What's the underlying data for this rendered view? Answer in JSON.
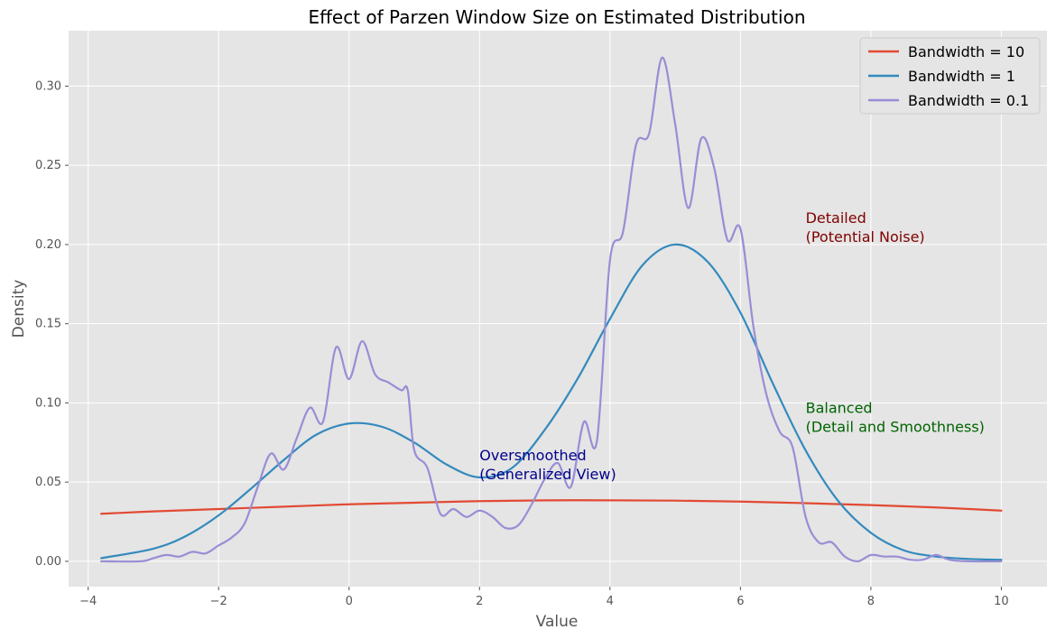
{
  "chart_data": {
    "type": "line",
    "title": "Effect of Parzen Window Size on Estimated Distribution",
    "xlabel": "Value",
    "ylabel": "Density",
    "xlim": [
      -4.3,
      10.7
    ],
    "ylim": [
      -0.016,
      0.335
    ],
    "xticks": [
      -4,
      -2,
      0,
      2,
      4,
      6,
      8,
      10
    ],
    "xtick_labels": [
      "−4",
      "−2",
      "0",
      "2",
      "4",
      "6",
      "8",
      "10"
    ],
    "yticks": [
      0.0,
      0.05,
      0.1,
      0.15,
      0.2,
      0.25,
      0.3
    ],
    "ytick_labels": [
      "0.00",
      "0.05",
      "0.10",
      "0.15",
      "0.20",
      "0.25",
      "0.30"
    ],
    "grid": true,
    "legend_position": "top-right",
    "series": [
      {
        "name": "Bandwidth = 10",
        "color": "#E24A33",
        "x": [
          -3.8,
          -3.0,
          -2.0,
          -1.0,
          0.0,
          1.0,
          2.0,
          3.0,
          4.0,
          5.0,
          6.0,
          7.0,
          8.0,
          9.0,
          10.0
        ],
        "y": [
          0.03,
          0.0315,
          0.033,
          0.0345,
          0.036,
          0.037,
          0.038,
          0.0385,
          0.0385,
          0.0383,
          0.0377,
          0.0367,
          0.0355,
          0.034,
          0.032
        ]
      },
      {
        "name": "Bandwidth = 1",
        "color": "#348ABD",
        "x": [
          -3.8,
          -3.0,
          -2.5,
          -2.0,
          -1.5,
          -1.0,
          -0.5,
          0.0,
          0.5,
          1.0,
          1.5,
          2.0,
          2.5,
          3.0,
          3.5,
          4.0,
          4.5,
          5.0,
          5.5,
          6.0,
          6.5,
          7.0,
          7.5,
          8.0,
          8.5,
          9.0,
          9.5,
          10.0
        ],
        "y": [
          0.002,
          0.008,
          0.016,
          0.029,
          0.046,
          0.064,
          0.08,
          0.087,
          0.085,
          0.075,
          0.061,
          0.053,
          0.059,
          0.083,
          0.115,
          0.153,
          0.187,
          0.2,
          0.189,
          0.157,
          0.112,
          0.07,
          0.038,
          0.018,
          0.007,
          0.003,
          0.0015,
          0.001
        ]
      },
      {
        "name": "Bandwidth = 0.1",
        "color": "#988ED5",
        "x": [
          -3.8,
          -3.2,
          -3.0,
          -2.8,
          -2.6,
          -2.4,
          -2.2,
          -2.0,
          -1.8,
          -1.6,
          -1.4,
          -1.2,
          -1.0,
          -0.8,
          -0.6,
          -0.4,
          -0.2,
          0.0,
          0.2,
          0.4,
          0.6,
          0.8,
          0.9,
          1.0,
          1.2,
          1.4,
          1.6,
          1.8,
          2.0,
          2.2,
          2.4,
          2.6,
          2.8,
          3.0,
          3.2,
          3.4,
          3.6,
          3.8,
          4.0,
          4.2,
          4.4,
          4.6,
          4.8,
          5.0,
          5.2,
          5.4,
          5.6,
          5.8,
          6.0,
          6.2,
          6.4,
          6.6,
          6.8,
          7.0,
          7.2,
          7.4,
          7.6,
          7.8,
          8.0,
          8.2,
          8.4,
          8.6,
          8.8,
          9.0,
          9.2,
          9.5,
          10.0
        ],
        "y": [
          0.0,
          0.0,
          0.002,
          0.004,
          0.003,
          0.006,
          0.005,
          0.01,
          0.015,
          0.024,
          0.047,
          0.068,
          0.058,
          0.078,
          0.097,
          0.088,
          0.135,
          0.115,
          0.139,
          0.118,
          0.113,
          0.108,
          0.108,
          0.07,
          0.059,
          0.03,
          0.033,
          0.028,
          0.032,
          0.028,
          0.021,
          0.023,
          0.036,
          0.052,
          0.062,
          0.047,
          0.088,
          0.076,
          0.19,
          0.208,
          0.263,
          0.27,
          0.318,
          0.276,
          0.223,
          0.267,
          0.248,
          0.203,
          0.21,
          0.148,
          0.105,
          0.082,
          0.072,
          0.028,
          0.012,
          0.012,
          0.003,
          0.0,
          0.004,
          0.003,
          0.003,
          0.001,
          0.001,
          0.004,
          0.001,
          0.0,
          0.0
        ]
      }
    ],
    "annotations": [
      {
        "lines": [
          "Detailed",
          "(Potential Noise)"
        ],
        "x": 7.0,
        "y": 0.2,
        "color": "#800000"
      },
      {
        "lines": [
          "Balanced",
          "(Detail and Smoothness)"
        ],
        "x": 7.0,
        "y": 0.08,
        "color": "#006400"
      },
      {
        "lines": [
          "Oversmoothed",
          "(Generalized View)"
        ],
        "x": 2.0,
        "y": 0.05,
        "color": "#00008B"
      }
    ]
  }
}
